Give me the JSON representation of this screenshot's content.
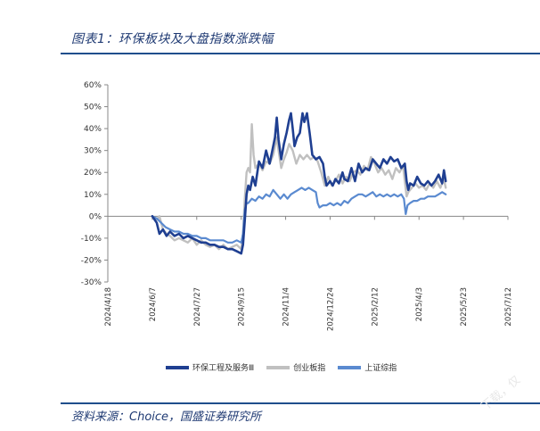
{
  "figure": {
    "title": "图表1：环保板块及大盘指数涨跌幅",
    "source": "资料来源：Choice，国盛证券研究所",
    "watermark": "下载，仅"
  },
  "chart_data": {
    "type": "line",
    "ylim": [
      -30,
      60
    ],
    "yticks": [
      "60%",
      "50%",
      "40%",
      "30%",
      "20%",
      "10%",
      "0%",
      "-10%",
      "-20%",
      "-30%"
    ],
    "ytick_values": [
      60,
      50,
      40,
      30,
      20,
      10,
      0,
      -10,
      -20,
      -30
    ],
    "xticks": [
      "2024/4/18",
      "2024/6/7",
      "2024/7/27",
      "2024/9/15",
      "2024/11/4",
      "2024/12/24",
      "2025/2/12",
      "2025/4/3",
      "2025/5/23",
      "2025/7/12"
    ],
    "xtick_days": [
      0,
      50,
      100,
      150,
      200,
      250,
      300,
      350,
      400,
      450
    ],
    "grid": false,
    "legend_position": "bottom",
    "series": [
      {
        "name": "环保工程及服务Ⅲ",
        "color": "#1f3f91",
        "points": [
          [
            50,
            0
          ],
          [
            55,
            -3
          ],
          [
            58,
            -8
          ],
          [
            62,
            -6
          ],
          [
            66,
            -9
          ],
          [
            70,
            -7
          ],
          [
            75,
            -9
          ],
          [
            80,
            -8
          ],
          [
            85,
            -10
          ],
          [
            90,
            -9
          ],
          [
            95,
            -10
          ],
          [
            100,
            -11
          ],
          [
            105,
            -12
          ],
          [
            110,
            -12
          ],
          [
            115,
            -13
          ],
          [
            120,
            -13
          ],
          [
            125,
            -14
          ],
          [
            130,
            -14
          ],
          [
            135,
            -15
          ],
          [
            140,
            -15
          ],
          [
            145,
            -16
          ],
          [
            150,
            -17
          ],
          [
            152,
            -13
          ],
          [
            154,
            -2
          ],
          [
            156,
            10
          ],
          [
            158,
            14
          ],
          [
            160,
            12
          ],
          [
            163,
            18
          ],
          [
            166,
            14
          ],
          [
            170,
            25
          ],
          [
            174,
            22
          ],
          [
            178,
            30
          ],
          [
            182,
            24
          ],
          [
            185,
            30
          ],
          [
            188,
            36
          ],
          [
            190,
            45
          ],
          [
            192,
            35
          ],
          [
            195,
            26
          ],
          [
            198,
            33
          ],
          [
            201,
            38
          ],
          [
            204,
            44
          ],
          [
            206,
            47
          ],
          [
            208,
            40
          ],
          [
            210,
            32
          ],
          [
            213,
            36
          ],
          [
            216,
            38
          ],
          [
            219,
            47
          ],
          [
            221,
            43
          ],
          [
            224,
            47
          ],
          [
            227,
            38
          ],
          [
            230,
            28
          ],
          [
            234,
            26
          ],
          [
            238,
            27
          ],
          [
            242,
            24
          ],
          [
            244,
            18
          ],
          [
            246,
            14
          ],
          [
            250,
            16
          ],
          [
            253,
            14
          ],
          [
            256,
            17
          ],
          [
            260,
            15
          ],
          [
            264,
            20
          ],
          [
            266,
            17
          ],
          [
            270,
            16
          ],
          [
            274,
            22
          ],
          [
            278,
            16
          ],
          [
            282,
            24
          ],
          [
            286,
            20
          ],
          [
            290,
            22
          ],
          [
            294,
            21
          ],
          [
            298,
            26
          ],
          [
            302,
            24
          ],
          [
            306,
            22
          ],
          [
            310,
            26
          ],
          [
            314,
            24
          ],
          [
            318,
            27
          ],
          [
            322,
            25
          ],
          [
            326,
            26
          ],
          [
            330,
            22
          ],
          [
            334,
            24
          ],
          [
            336,
            16
          ],
          [
            338,
            12
          ],
          [
            340,
            15
          ],
          [
            344,
            14
          ],
          [
            348,
            18
          ],
          [
            352,
            15
          ],
          [
            356,
            14
          ],
          [
            360,
            16
          ],
          [
            364,
            14
          ],
          [
            368,
            16
          ],
          [
            372,
            19
          ],
          [
            376,
            15
          ],
          [
            378,
            21
          ],
          [
            380,
            16
          ]
        ]
      },
      {
        "name": "创业板指",
        "color": "#c0c0c0",
        "points": [
          [
            50,
            0
          ],
          [
            54,
            -2
          ],
          [
            58,
            0
          ],
          [
            62,
            -6
          ],
          [
            66,
            -8
          ],
          [
            70,
            -9
          ],
          [
            75,
            -11
          ],
          [
            80,
            -10
          ],
          [
            85,
            -11
          ],
          [
            90,
            -12
          ],
          [
            95,
            -10
          ],
          [
            100,
            -13
          ],
          [
            105,
            -11
          ],
          [
            110,
            -13
          ],
          [
            115,
            -14
          ],
          [
            120,
            -13
          ],
          [
            125,
            -15
          ],
          [
            130,
            -13
          ],
          [
            135,
            -15
          ],
          [
            140,
            -14
          ],
          [
            145,
            -13
          ],
          [
            150,
            -15
          ],
          [
            152,
            -8
          ],
          [
            154,
            8
          ],
          [
            156,
            20
          ],
          [
            158,
            22
          ],
          [
            160,
            20
          ],
          [
            162,
            42
          ],
          [
            164,
            28
          ],
          [
            166,
            22
          ],
          [
            170,
            24
          ],
          [
            174,
            21
          ],
          [
            178,
            25
          ],
          [
            182,
            24
          ],
          [
            186,
            28
          ],
          [
            190,
            36
          ],
          [
            192,
            30
          ],
          [
            195,
            22
          ],
          [
            198,
            26
          ],
          [
            201,
            29
          ],
          [
            204,
            33
          ],
          [
            208,
            30
          ],
          [
            212,
            24
          ],
          [
            216,
            28
          ],
          [
            220,
            26
          ],
          [
            224,
            28
          ],
          [
            228,
            26
          ],
          [
            232,
            27
          ],
          [
            236,
            25
          ],
          [
            240,
            20
          ],
          [
            244,
            14
          ],
          [
            248,
            18
          ],
          [
            252,
            14
          ],
          [
            256,
            16
          ],
          [
            260,
            19
          ],
          [
            264,
            15
          ],
          [
            268,
            18
          ],
          [
            272,
            16
          ],
          [
            276,
            20
          ],
          [
            280,
            21
          ],
          [
            284,
            19
          ],
          [
            288,
            23
          ],
          [
            292,
            21
          ],
          [
            296,
            27
          ],
          [
            300,
            24
          ],
          [
            304,
            20
          ],
          [
            308,
            22
          ],
          [
            312,
            19
          ],
          [
            316,
            21
          ],
          [
            320,
            17
          ],
          [
            324,
            22
          ],
          [
            328,
            20
          ],
          [
            332,
            23
          ],
          [
            334,
            16
          ],
          [
            336,
            9
          ],
          [
            338,
            11
          ],
          [
            342,
            13
          ],
          [
            346,
            15
          ],
          [
            350,
            13
          ],
          [
            354,
            14
          ],
          [
            358,
            12
          ],
          [
            362,
            15
          ],
          [
            366,
            13
          ],
          [
            370,
            16
          ],
          [
            374,
            13
          ],
          [
            378,
            17
          ],
          [
            380,
            13
          ]
        ]
      },
      {
        "name": "上证综指",
        "color": "#5a8ad0",
        "points": [
          [
            50,
            0
          ],
          [
            55,
            -1
          ],
          [
            60,
            -3
          ],
          [
            65,
            -5
          ],
          [
            70,
            -6
          ],
          [
            75,
            -7
          ],
          [
            80,
            -7
          ],
          [
            85,
            -8
          ],
          [
            90,
            -8
          ],
          [
            95,
            -9
          ],
          [
            100,
            -9
          ],
          [
            105,
            -10
          ],
          [
            110,
            -10
          ],
          [
            115,
            -11
          ],
          [
            120,
            -11
          ],
          [
            125,
            -11
          ],
          [
            130,
            -11
          ],
          [
            135,
            -12
          ],
          [
            140,
            -12
          ],
          [
            145,
            -11
          ],
          [
            150,
            -12
          ],
          [
            152,
            -8
          ],
          [
            154,
            3
          ],
          [
            156,
            6
          ],
          [
            158,
            6
          ],
          [
            162,
            8
          ],
          [
            166,
            7
          ],
          [
            170,
            9
          ],
          [
            174,
            8
          ],
          [
            178,
            10
          ],
          [
            182,
            9
          ],
          [
            186,
            12
          ],
          [
            190,
            10
          ],
          [
            194,
            8
          ],
          [
            198,
            10
          ],
          [
            202,
            8
          ],
          [
            206,
            10
          ],
          [
            210,
            11
          ],
          [
            214,
            12
          ],
          [
            218,
            13
          ],
          [
            222,
            12
          ],
          [
            226,
            13
          ],
          [
            230,
            12
          ],
          [
            234,
            11
          ],
          [
            236,
            6
          ],
          [
            238,
            4
          ],
          [
            242,
            5
          ],
          [
            246,
            5
          ],
          [
            250,
            6
          ],
          [
            254,
            5
          ],
          [
            258,
            6
          ],
          [
            262,
            5
          ],
          [
            266,
            7
          ],
          [
            270,
            6
          ],
          [
            274,
            8
          ],
          [
            278,
            9
          ],
          [
            282,
            10
          ],
          [
            286,
            10
          ],
          [
            290,
            9
          ],
          [
            294,
            10
          ],
          [
            298,
            11
          ],
          [
            302,
            9
          ],
          [
            306,
            10
          ],
          [
            310,
            9
          ],
          [
            314,
            10
          ],
          [
            318,
            9
          ],
          [
            322,
            10
          ],
          [
            326,
            9
          ],
          [
            330,
            10
          ],
          [
            333,
            8
          ],
          [
            335,
            1
          ],
          [
            337,
            5
          ],
          [
            340,
            6
          ],
          [
            344,
            7
          ],
          [
            348,
            7
          ],
          [
            352,
            8
          ],
          [
            356,
            8
          ],
          [
            360,
            9
          ],
          [
            364,
            9
          ],
          [
            368,
            9
          ],
          [
            372,
            10
          ],
          [
            376,
            11
          ],
          [
            380,
            10
          ]
        ]
      }
    ]
  }
}
